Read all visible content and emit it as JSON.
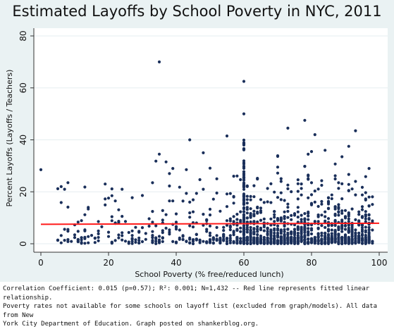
{
  "chart_data": {
    "type": "scatter",
    "title": "Estimated Layoffs by School Poverty in NYC, 2011",
    "xlabel": "School Poverty (% free/reduced lunch)",
    "ylabel": "Percent Layoffs (Layoffs / Teachers)",
    "xlim": [
      0,
      100
    ],
    "ylim": [
      0,
      80
    ],
    "xticks": [
      "0",
      "20",
      "40",
      "60",
      "80",
      "100"
    ],
    "yticks": [
      "0",
      "20",
      "40",
      "60",
      "80"
    ],
    "grid": "horizontal",
    "marker_color": "#1a2f5a",
    "fit_line_color": "#ff1a1a",
    "fit_line": {
      "intercept": 7.5,
      "slope": 0.004
    },
    "n_points": 1432,
    "outliers": [
      {
        "x": 0,
        "y": 28.5
      },
      {
        "x": 35,
        "y": 70
      },
      {
        "x": 60,
        "y": 62.5
      },
      {
        "x": 60,
        "y": 50
      },
      {
        "x": 55,
        "y": 41.5
      },
      {
        "x": 44,
        "y": 40
      },
      {
        "x": 78,
        "y": 47.5
      },
      {
        "x": 73,
        "y": 44.5
      },
      {
        "x": 81,
        "y": 42
      },
      {
        "x": 93,
        "y": 43.5
      },
      {
        "x": 35,
        "y": 34.5
      },
      {
        "x": 48,
        "y": 35
      },
      {
        "x": 37,
        "y": 31.5
      },
      {
        "x": 39,
        "y": 29
      },
      {
        "x": 38,
        "y": 27
      },
      {
        "x": 84,
        "y": 36
      },
      {
        "x": 91,
        "y": 37.5
      },
      {
        "x": 89,
        "y": 33.5
      },
      {
        "x": 97,
        "y": 29
      },
      {
        "x": 70,
        "y": 29.5
      },
      {
        "x": 8,
        "y": 23.5
      },
      {
        "x": 6,
        "y": 22
      },
      {
        "x": 7,
        "y": 21
      },
      {
        "x": 19,
        "y": 23
      },
      {
        "x": 24,
        "y": 21
      },
      {
        "x": 52,
        "y": 25
      },
      {
        "x": 57,
        "y": 26
      }
    ]
  },
  "footnote": "Correlation Coefficient: 0.015 (p=0.57); R²: 0.001; N=1,432 -- Red line represents fitted linear relationship.\nPoverty rates not available for some schools on layoff list (excluded from graph/models). All data from New\nYork City Department of Education. Graph posted on shankerblog.org."
}
